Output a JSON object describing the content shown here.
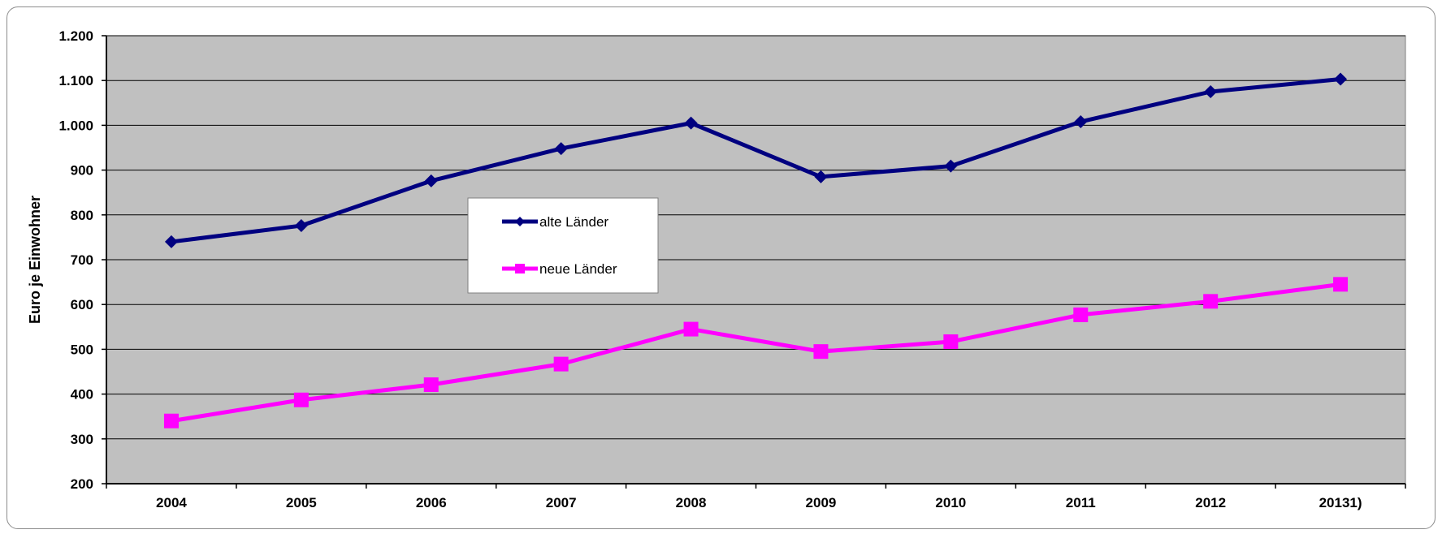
{
  "chart_data": {
    "type": "line",
    "title": "",
    "xlabel": "",
    "ylabel": "Euro je Einwohner",
    "categories": [
      "2004",
      "2005",
      "2006",
      "2007",
      "2008",
      "2009",
      "2010",
      "2011",
      "2012",
      "20131)"
    ],
    "ylim": [
      200,
      1200
    ],
    "yticks": [
      200,
      300,
      400,
      500,
      600,
      700,
      800,
      900,
      1000,
      1100,
      1200
    ],
    "ytick_labels": [
      "200",
      "300",
      "400",
      "500",
      "600",
      "700",
      "800",
      "900",
      "1.000",
      "1.100",
      "1.200"
    ],
    "grid": true,
    "legend_position": "center-left",
    "series": [
      {
        "name": "alte Länder",
        "color": "#000080",
        "marker": "diamond",
        "values": [
          740,
          776,
          876,
          948,
          1005,
          885,
          909,
          1008,
          1075,
          1103
        ]
      },
      {
        "name": "neue Länder",
        "color": "#ff00ff",
        "marker": "square",
        "values": [
          340,
          387,
          421,
          467,
          545,
          495,
          517,
          577,
          607,
          645
        ]
      }
    ],
    "plot_background": "#c0c0c0"
  }
}
